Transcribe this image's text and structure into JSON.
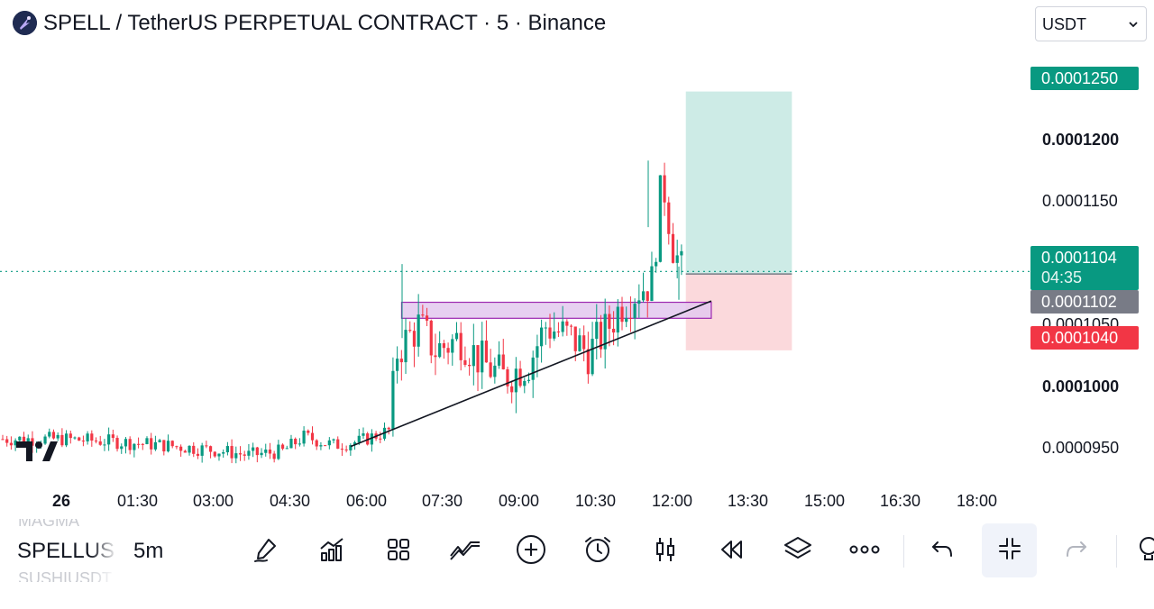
{
  "header": {
    "title": "SPELL / TetherUS PERPETUAL CONTRACT · 5 · Binance",
    "currency": "USDT"
  },
  "price_axis": {
    "target_price": "0.0001250",
    "level_1200": "0.0001200",
    "level_1150": "0.0001150",
    "current_price": "0.0001104",
    "countdown": "04:35",
    "entry_price": "0.0001102",
    "level_1050": "0.0001050",
    "stop_price": "0.0001040",
    "level_1000": "0.0001000",
    "level_950": "0.0000950"
  },
  "time_axis": [
    "26",
    "01:30",
    "03:00",
    "04:30",
    "06:00",
    "07:30",
    "09:00",
    "10:30",
    "12:00",
    "13:30",
    "15:00",
    "16:30",
    "18:00"
  ],
  "toolbar": {
    "symbol": "SPELLUSDT",
    "interval": "5m",
    "ghost_above": "MAGMA",
    "ghost_below": "SUSHIUSDT"
  },
  "colors": {
    "up": "#089981",
    "down": "#f23645",
    "profit_zone": "#cdebe6",
    "loss_zone": "#fbd9dc",
    "zone_box": "#e3c8ef",
    "zone_border": "#9c27b0"
  },
  "chart_data": {
    "type": "candlestick",
    "symbol": "SPELL / TetherUS PERPETUAL CONTRACT",
    "timeframe": "5",
    "exchange": "Binance",
    "y_axis_ticks": [
      9.5e-05,
      0.0001,
      0.000105,
      0.000115,
      0.00012
    ],
    "x_axis_ticks": [
      "26",
      "01:30",
      "03:00",
      "04:30",
      "06:00",
      "07:30",
      "09:00",
      "10:30",
      "12:00",
      "13:30",
      "15:00",
      "16:30",
      "18:00"
    ],
    "last_price": 0.0001104,
    "bar_countdown": "04:35",
    "long_position": {
      "entry": 0.0001102,
      "target": 0.000125,
      "stop": 0.000104,
      "start_time": "12:15",
      "end_time": "14:20"
    },
    "rectangle": {
      "price_top": 0.0001079,
      "price_bottom": 0.0001066,
      "start_time": "06:40",
      "end_time": "12:45"
    },
    "trendline": {
      "start": [
        "05:40",
        9.62e-05
      ],
      "end": [
        "12:45",
        0.000108
      ]
    },
    "candle_anchors": [
      [
        "00:00",
        9.68e-05
      ],
      [
        "01:00",
        9.66e-05
      ],
      [
        "02:00",
        9.63e-05
      ],
      [
        "03:00",
        9.59e-05
      ],
      [
        "03:40",
        9.55e-05
      ],
      [
        "04:20",
        9.58e-05
      ],
      [
        "04:45",
        9.7e-05
      ],
      [
        "05:20",
        9.63e-05
      ],
      [
        "05:50",
        9.66e-05
      ],
      [
        "06:25",
        9.75e-05
      ],
      [
        "06:35",
        0.000104
      ],
      [
        "07:00",
        0.000106
      ],
      [
        "07:20",
        0.000104
      ],
      [
        "07:50",
        0.000105
      ],
      [
        "08:15",
        0.000103
      ],
      [
        "08:40",
        0.0001018
      ],
      [
        "09:10",
        0.000103
      ],
      [
        "09:30",
        0.000106
      ],
      [
        "10:00",
        0.000105
      ],
      [
        "10:20",
        0.0001038
      ],
      [
        "10:40",
        0.0001055
      ],
      [
        "11:00",
        0.0001078
      ],
      [
        "11:20",
        0.000109
      ],
      [
        "11:35",
        0.0001095
      ],
      [
        "11:45",
        0.0001165
      ],
      [
        "11:50",
        0.000117
      ],
      [
        "12:00",
        0.0001125
      ],
      [
        "12:10",
        0.0001104
      ]
    ]
  }
}
